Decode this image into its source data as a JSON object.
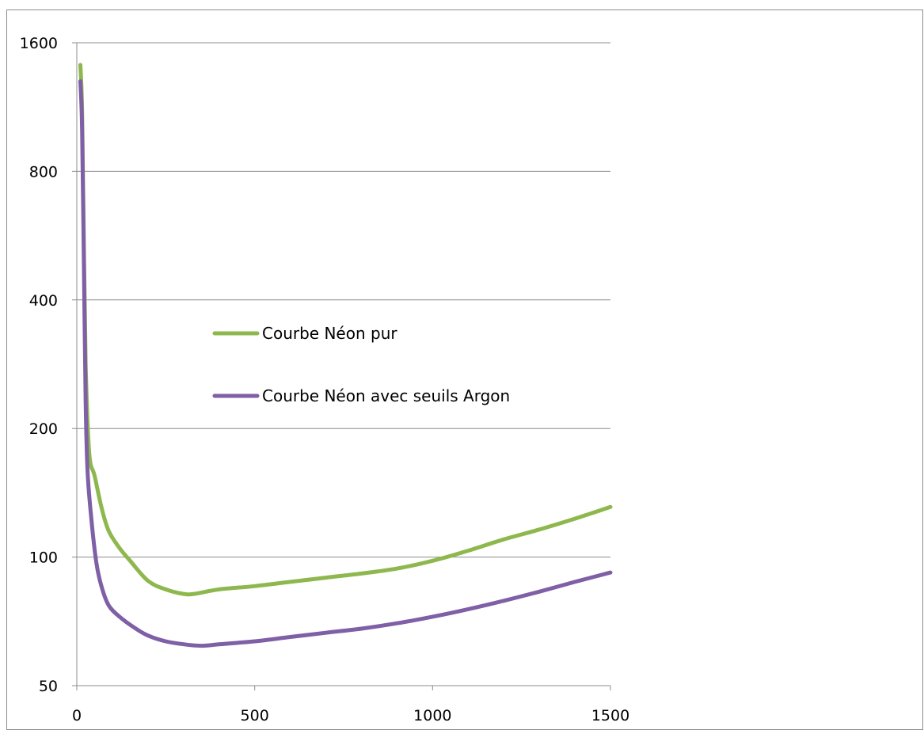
{
  "chart_data": {
    "type": "line",
    "title": "",
    "xlabel": "",
    "ylabel": "",
    "x_axis": {
      "min": 0,
      "max": 1500,
      "ticks": [
        0,
        500,
        1000,
        1500
      ]
    },
    "y_axis": {
      "scale": "log2",
      "min": 50,
      "max": 1600,
      "ticks": [
        50,
        100,
        200,
        400,
        800,
        1600
      ]
    },
    "grid": "horizontal",
    "legend": {
      "position": "center",
      "entries": [
        "Courbe Néon pur",
        "Courbe Néon avec seuils Argon"
      ]
    },
    "series": [
      {
        "name": "Courbe Néon pur",
        "color": "#8eb84e",
        "points": [
          [
            10,
            1420
          ],
          [
            15,
            1100
          ],
          [
            20,
            520
          ],
          [
            25,
            280
          ],
          [
            35,
            175
          ],
          [
            50,
            155
          ],
          [
            70,
            130
          ],
          [
            90,
            115
          ],
          [
            120,
            105
          ],
          [
            150,
            98
          ],
          [
            200,
            88
          ],
          [
            250,
            84
          ],
          [
            300,
            82
          ],
          [
            330,
            82
          ],
          [
            400,
            84
          ],
          [
            500,
            85.5
          ],
          [
            600,
            87.5
          ],
          [
            700,
            89.5
          ],
          [
            800,
            91.5
          ],
          [
            900,
            94
          ],
          [
            1000,
            98
          ],
          [
            1100,
            103.5
          ],
          [
            1200,
            110
          ],
          [
            1300,
            116
          ],
          [
            1400,
            123
          ],
          [
            1500,
            131
          ]
        ]
      },
      {
        "name": "Courbe Néon avec seuils Argon",
        "color": "#7f5fa6",
        "points": [
          [
            10,
            1300
          ],
          [
            15,
            1000
          ],
          [
            20,
            480
          ],
          [
            25,
            230
          ],
          [
            30,
            160
          ],
          [
            40,
            125
          ],
          [
            55,
            97
          ],
          [
            70,
            85
          ],
          [
            90,
            77
          ],
          [
            120,
            72.5
          ],
          [
            160,
            68.5
          ],
          [
            200,
            65.5
          ],
          [
            250,
            63.5
          ],
          [
            300,
            62.5
          ],
          [
            350,
            62
          ],
          [
            400,
            62.5
          ],
          [
            500,
            63.5
          ],
          [
            600,
            65
          ],
          [
            700,
            66.5
          ],
          [
            800,
            68
          ],
          [
            900,
            70
          ],
          [
            1000,
            72.5
          ],
          [
            1100,
            75.5
          ],
          [
            1200,
            79
          ],
          [
            1300,
            83
          ],
          [
            1400,
            87.5
          ],
          [
            1500,
            92
          ]
        ]
      }
    ]
  }
}
